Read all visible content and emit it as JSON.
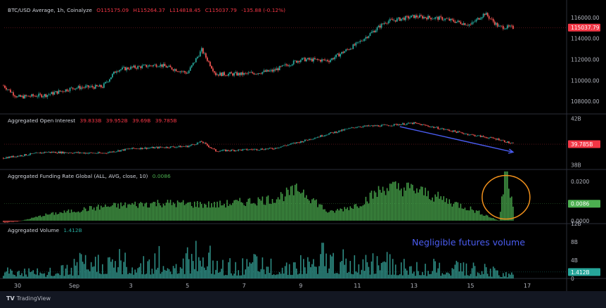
{
  "chart_data": [
    {
      "type": "candlestick",
      "title": "BTC/USD Average, 1h, Coinalyze",
      "ohlc": {
        "O": "O115175.09",
        "H": "H115264.37",
        "L": "L114818.45",
        "C": "C115037.79",
        "change": "-135.88 (-0.12%)"
      },
      "y_ticks": [
        "116000.00",
        "114000.00",
        "112000.00",
        "110000.00",
        "108000.00"
      ],
      "y_tick_values": [
        116000,
        114000,
        112000,
        110000,
        108000
      ],
      "ylim": [
        106800,
        117400
      ],
      "last_price_label": "115037.79",
      "last_value": 115037.79,
      "series": [
        {
          "x": "Aug 29 12:00",
          "close": 109500
        },
        {
          "x": "Aug 30",
          "close": 108400
        },
        {
          "x": "Aug 31",
          "close": 108600
        },
        {
          "x": "Sep 1",
          "close": 109300
        },
        {
          "x": "Sep 2",
          "close": 109400
        },
        {
          "x": "Sep 2 12:00",
          "close": 111000
        },
        {
          "x": "Sep 3",
          "close": 111200
        },
        {
          "x": "Sep 4",
          "close": 111500
        },
        {
          "x": "Sep 5",
          "close": 110700
        },
        {
          "x": "Sep 5 12:00",
          "close": 112900
        },
        {
          "x": "Sep 6",
          "close": 110600
        },
        {
          "x": "Sep 7",
          "close": 110600
        },
        {
          "x": "Sep 8",
          "close": 110900
        },
        {
          "x": "Sep 9",
          "close": 112000
        },
        {
          "x": "Sep 10",
          "close": 111900
        },
        {
          "x": "Sep 11",
          "close": 113500
        },
        {
          "x": "Sep 12",
          "close": 115600
        },
        {
          "x": "Sep 13",
          "close": 116100
        },
        {
          "x": "Sep 14",
          "close": 115900
        },
        {
          "x": "Sep 15",
          "close": 115300
        },
        {
          "x": "Sep 15 12:00",
          "close": 116400
        },
        {
          "x": "Sep 16",
          "close": 115100
        },
        {
          "x": "Sep 16 12:00",
          "close": 115037.79
        }
      ]
    },
    {
      "type": "candlestick",
      "title": "Aggregated Open Interest",
      "ohlc": {
        "O": "39.833B",
        "H": "39.952B",
        "L": "39.69B",
        "C": "39.785B"
      },
      "y_ticks": [
        "42B",
        "38B"
      ],
      "y_tick_values": [
        42,
        38
      ],
      "ylim": [
        37.6,
        42.4
      ],
      "last_price_label": "39.785B",
      "last_value": 39.785,
      "series": [
        {
          "x": "Aug 29 12:00",
          "close": 38.6
        },
        {
          "x": "Aug 31",
          "close": 39.1
        },
        {
          "x": "Sep 2",
          "close": 39.0
        },
        {
          "x": "Sep 3",
          "close": 39.4
        },
        {
          "x": "Sep 5",
          "close": 39.6
        },
        {
          "x": "Sep 5 12:00",
          "close": 40.0
        },
        {
          "x": "Sep 6",
          "close": 39.2
        },
        {
          "x": "Sep 8",
          "close": 39.4
        },
        {
          "x": "Sep 9",
          "close": 40.0
        },
        {
          "x": "Sep 10",
          "close": 40.7
        },
        {
          "x": "Sep 11",
          "close": 41.3
        },
        {
          "x": "Sep 12",
          "close": 41.4
        },
        {
          "x": "Sep 13",
          "close": 41.6
        },
        {
          "x": "Sep 15",
          "close": 40.6
        },
        {
          "x": "Sep 16",
          "close": 40.2
        },
        {
          "x": "Sep 16 12:00",
          "close": 39.785
        }
      ],
      "annotation": {
        "type": "arrow",
        "x_from": "Sep 12 12:00",
        "y_from": 41.3,
        "x_to": "Sep 16 12:00",
        "y_to": 39.1,
        "color": "#4a5cf0"
      }
    },
    {
      "type": "bar",
      "title": "Aggregated Funding Rate Global (ALL, AVG, close, 10)",
      "last_value_label": "0.0086",
      "last_value": 0.0086,
      "y_ticks": [
        "0.0200",
        "0.0000"
      ],
      "y_tick_values": [
        0.02,
        0.0
      ],
      "ylim": [
        -0.0015,
        0.026
      ],
      "series": [
        {
          "x": "Aug 29 12:00",
          "value": -0.001
        },
        {
          "x": "Aug 30",
          "value": -0.0005
        },
        {
          "x": "Aug 31",
          "value": 0.003
        },
        {
          "x": "Sep 2",
          "value": 0.007
        },
        {
          "x": "Sep 4",
          "value": 0.009
        },
        {
          "x": "Sep 6",
          "value": 0.008
        },
        {
          "x": "Sep 8",
          "value": 0.011
        },
        {
          "x": "Sep 9",
          "value": 0.016
        },
        {
          "x": "Sep 10",
          "value": 0.004
        },
        {
          "x": "Sep 11",
          "value": 0.008
        },
        {
          "x": "Sep 12",
          "value": 0.017
        },
        {
          "x": "Sep 13",
          "value": 0.016
        },
        {
          "x": "Sep 15",
          "value": 0.006
        },
        {
          "x": "Sep 16",
          "value": 0.0
        },
        {
          "x": "Sep 16 06:00",
          "value": 0.025
        },
        {
          "x": "Sep 16 12:00",
          "value": 0.0086
        }
      ],
      "highlight": {
        "type": "circle",
        "x": "Sep 16 06:00",
        "color": "#f0901c"
      }
    },
    {
      "type": "bar",
      "title": "Aggregated Volume",
      "last_value_label": "1.412B",
      "last_value": 1.412,
      "y_ticks": [
        "12B",
        "8B",
        "4B",
        "0"
      ],
      "y_tick_values": [
        12,
        8,
        4,
        0
      ],
      "ylim": [
        0,
        12
      ],
      "series": [
        {
          "x": "Aug 29 12:00",
          "value": 3.2
        },
        {
          "x": "Aug 31",
          "value": 2.0
        },
        {
          "x": "Sep 2",
          "value": 6.5
        },
        {
          "x": "Sep 3",
          "value": 5.4
        },
        {
          "x": "Sep 4",
          "value": 6.0
        },
        {
          "x": "Sep 5",
          "value": 6.3
        },
        {
          "x": "Sep 5 12:00",
          "value": 11.0
        },
        {
          "x": "Sep 6",
          "value": 4.0
        },
        {
          "x": "Sep 9",
          "value": 5.4
        },
        {
          "x": "Sep 10",
          "value": 7.2
        },
        {
          "x": "Sep 11",
          "value": 5.3
        },
        {
          "x": "Sep 12",
          "value": 5.6
        },
        {
          "x": "Sep 13",
          "value": 3.6
        },
        {
          "x": "Sep 15",
          "value": 3.7
        },
        {
          "x": "Sep 16 12:00",
          "value": 1.412
        }
      ],
      "annotation_text": "Negligible futures volume"
    }
  ],
  "x_axis": {
    "ticks": [
      "30",
      "Sep",
      "3",
      "5",
      "7",
      "9",
      "11",
      "13",
      "15",
      "17"
    ],
    "tick_days": [
      0,
      2,
      4,
      6,
      8,
      10,
      12,
      14,
      16,
      18
    ]
  },
  "footer": {
    "brand": "TradingView"
  },
  "colors": {
    "up": "#26a69a",
    "down": "#ef5350",
    "accent_blue": "#4a5cf0",
    "highlight_orange": "#f0901c",
    "funding_green": "#4caf50",
    "volume_teal": "#2e8c83"
  }
}
